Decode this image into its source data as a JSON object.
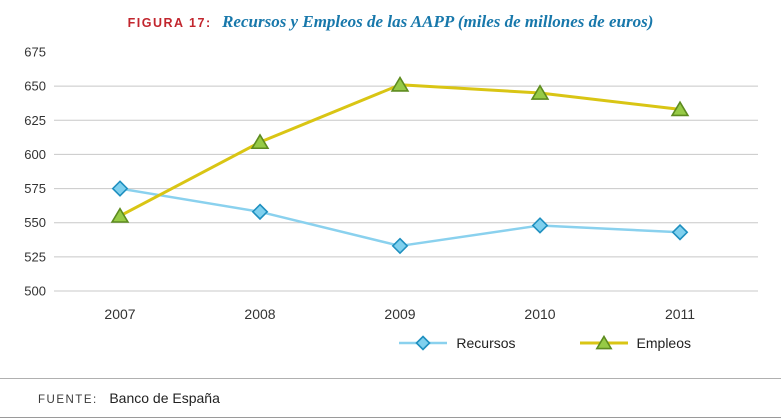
{
  "title": {
    "prefix": "FIGURA 17:",
    "text": "Recursos y Empleos de las AAPP (miles de millones de euros)"
  },
  "footer": {
    "source_label": "FUENTE:",
    "source_text": "Banco de España"
  },
  "colors": {
    "title_prefix": "#c2262e",
    "title_text": "#1878ab",
    "gridline": "#c8c8c8",
    "axis_text": "#333333"
  },
  "chart_data": {
    "type": "line",
    "title": "Recursos y Empleos de las AAPP (miles de millones de euros)",
    "x": [
      "2007",
      "2008",
      "2009",
      "2010",
      "2011"
    ],
    "series": [
      {
        "name": "Recursos",
        "marker": "diamond",
        "line_color": "#8ad1ee",
        "marker_fill": "#7fd0ee",
        "marker_stroke": "#1e8fbf",
        "values": [
          575,
          558,
          533,
          548,
          543
        ]
      },
      {
        "name": "Empleos",
        "marker": "triangle",
        "line_color": "#d9c514",
        "marker_fill": "#96ca46",
        "marker_stroke": "#5d8b1f",
        "values": [
          555,
          609,
          651,
          645,
          633
        ]
      }
    ],
    "ylim": [
      500,
      675
    ],
    "yticks": [
      500,
      525,
      550,
      575,
      600,
      625,
      650,
      675
    ],
    "grid": true,
    "legend_position": "bottom"
  }
}
